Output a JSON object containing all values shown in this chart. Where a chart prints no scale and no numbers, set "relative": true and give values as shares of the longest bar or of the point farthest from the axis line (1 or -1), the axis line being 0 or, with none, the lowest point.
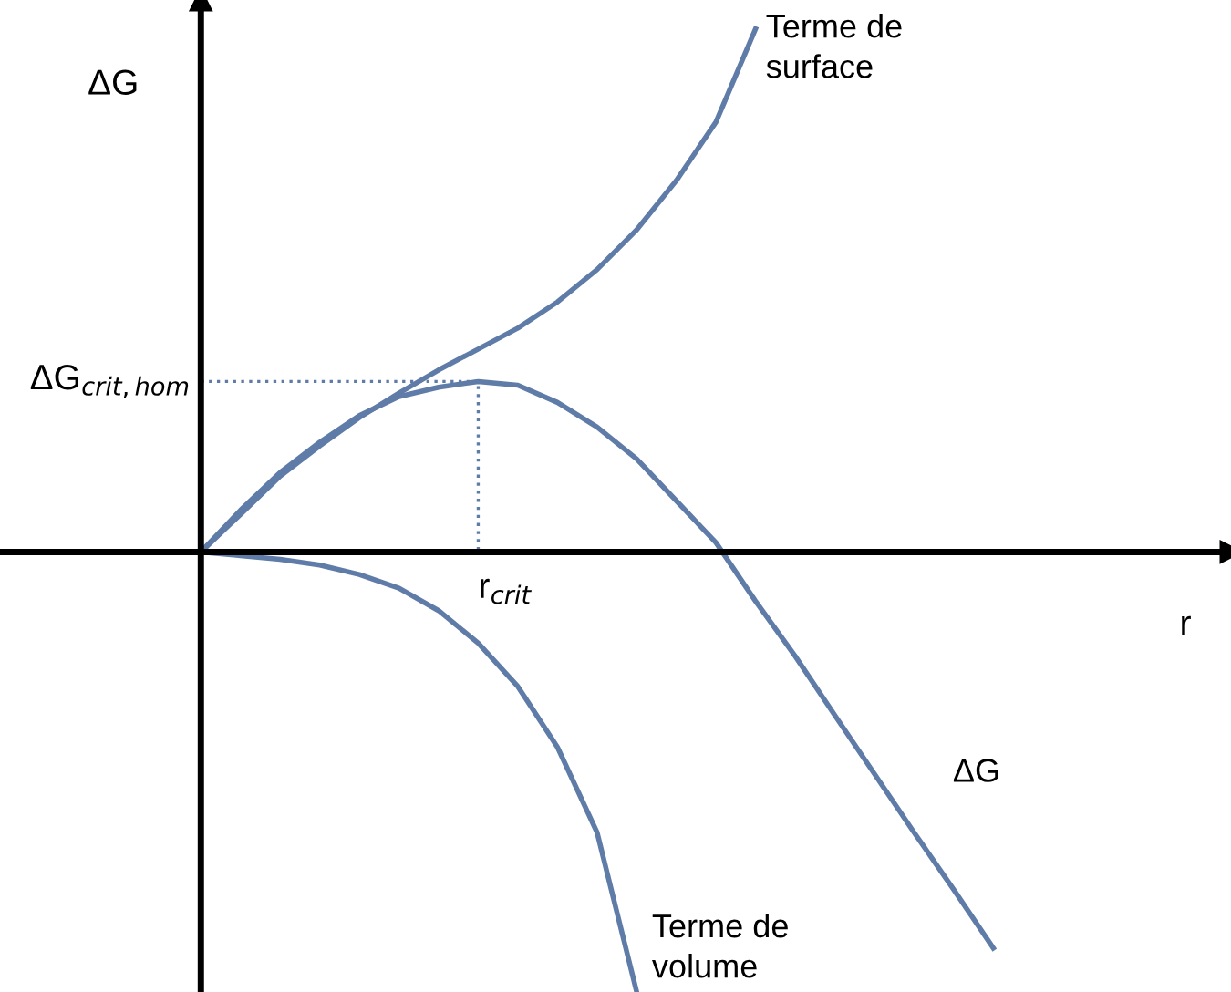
{
  "chart_data": {
    "type": "line",
    "relative": true,
    "xlabel": "r",
    "ylabel": "ΔG",
    "legend": false,
    "marker": "none",
    "line_style": "solid",
    "categories": [
      null,
      null,
      null,
      null,
      null,
      null,
      null,
      null,
      null,
      null,
      null,
      null,
      null,
      null,
      null,
      null,
      null,
      null,
      null,
      null,
      null,
      null,
      null,
      null,
      null,
      null,
      null
    ],
    "series": [
      {
        "name": "Terme de surface",
        "color": "#5f7ca8",
        "values": [
          0,
          0.072,
          0.145,
          0.203,
          0.257,
          0.304,
          0.348,
          0.388,
          0.428,
          0.478,
          0.54,
          0.616,
          0.71,
          0.822,
          1.0,
          null,
          null,
          null,
          null,
          null,
          null,
          null,
          null,
          null,
          null,
          null,
          null
        ]
      },
      {
        "name": "ΔG",
        "color": "#5f7ca8",
        "values": [
          0,
          0.08,
          0.152,
          0.21,
          0.261,
          0.297,
          0.315,
          0.326,
          0.319,
          0.286,
          0.239,
          0.178,
          0.098,
          0.018,
          -0.094,
          -0.199,
          -0.312,
          -0.424,
          -0.536,
          -0.645,
          -0.757,
          null,
          null,
          null,
          null,
          null,
          null
        ]
      },
      {
        "name": "Terme de volume",
        "color": "#5f7ca8",
        "values": [
          0,
          -0.007,
          -0.014,
          -0.025,
          -0.043,
          -0.069,
          -0.112,
          -0.174,
          -0.257,
          -0.373,
          -0.536,
          -0.841,
          null,
          null,
          null,
          null,
          null,
          null,
          null,
          null,
          null,
          null,
          null,
          null,
          null,
          null,
          null
        ]
      }
    ],
    "ref_lines": [
      {
        "axis": "y",
        "value": 0.326,
        "label": "ΔG$_{crit,hom}$",
        "color": "#5f7ca8",
        "line_style": "dotted"
      }
    ],
    "annotations": [
      "r$_{crit}$"
    ]
  }
}
